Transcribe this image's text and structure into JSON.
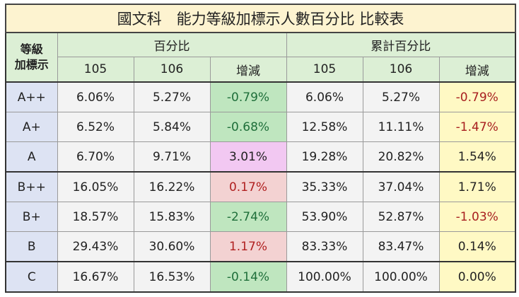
{
  "title": "國文科　能力等級加標示人數百分比 比較表",
  "headers": {
    "row_label": "等級\n加標示",
    "group_pct": "百分比",
    "group_cum": "累計百分比",
    "cols": [
      "105",
      "106",
      "增減",
      "105",
      "106",
      "增減"
    ]
  },
  "rows": [
    {
      "grade": "A++",
      "p105": "6.06%",
      "p106": "5.27%",
      "pdiff": "-0.79%",
      "c105": "6.06%",
      "c106": "5.27%",
      "cdiff": "-0.79%"
    },
    {
      "grade": "A+",
      "p105": "6.52%",
      "p106": "5.84%",
      "pdiff": "-0.68%",
      "c105": "12.58%",
      "c106": "11.11%",
      "cdiff": "-1.47%"
    },
    {
      "grade": "A",
      "p105": "6.70%",
      "p106": "9.71%",
      "pdiff": "3.01%",
      "c105": "19.28%",
      "c106": "20.82%",
      "cdiff": "1.54%"
    },
    {
      "grade": "B++",
      "p105": "16.05%",
      "p106": "16.22%",
      "pdiff": "0.17%",
      "c105": "35.33%",
      "c106": "37.04%",
      "cdiff": "1.71%"
    },
    {
      "grade": "B+",
      "p105": "18.57%",
      "p106": "15.83%",
      "pdiff": "-2.74%",
      "c105": "53.90%",
      "c106": "52.87%",
      "cdiff": "-1.03%"
    },
    {
      "grade": "B",
      "p105": "29.43%",
      "p106": "30.60%",
      "pdiff": "1.17%",
      "c105": "83.33%",
      "c106": "83.47%",
      "cdiff": "0.14%"
    },
    {
      "grade": "C",
      "p105": "16.67%",
      "p106": "16.53%",
      "pdiff": "-0.14%",
      "c105": "100.00%",
      "c106": "100.00%",
      "cdiff": "0.00%"
    }
  ],
  "colors": {
    "title_bg": "#fdf3d0",
    "header_bg": "#dcefd5",
    "grade_bg": "#dde3f3",
    "cell_bg": "#f3f3f3",
    "decrease_bg": "#bfe6bf",
    "increase_bg": "#f3d2d2",
    "large_increase_bg": "#f2c8f2",
    "cum_diff_bg": "#fff9c4",
    "negative_text": "#a82020"
  }
}
